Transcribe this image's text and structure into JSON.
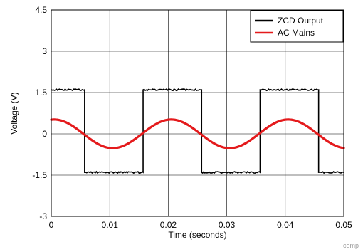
{
  "chart_data": {
    "type": "line",
    "xlabel": "Time (seconds)",
    "ylabel": "Voltage (V)",
    "xlim": [
      0,
      0.05
    ],
    "ylim": [
      -3,
      4.5
    ],
    "xticks": [
      0,
      0.01,
      0.02,
      0.03,
      0.04,
      0.05
    ],
    "yticks": [
      -3,
      -1.5,
      0,
      1.5,
      3,
      4.5
    ],
    "x_tick_labels": [
      "0",
      "0.01",
      "0.02",
      "0.03",
      "0.04",
      "0.05"
    ],
    "y_tick_labels": [
      "-3",
      "-1.5",
      "0",
      "1.5",
      "3",
      "4.5"
    ],
    "grid": true,
    "legend_position": "top-right",
    "series": [
      {
        "name": "ZCD Output",
        "color": "#000000",
        "x": [
          0,
          0.0057,
          0.0057,
          0.0157,
          0.0157,
          0.0257,
          0.0257,
          0.0357,
          0.0357,
          0.0457,
          0.0457,
          0.05
        ],
        "y": [
          1.6,
          1.6,
          -1.4,
          -1.4,
          1.6,
          1.6,
          -1.4,
          -1.4,
          1.6,
          1.6,
          -1.4,
          -1.4
        ]
      },
      {
        "name": "AC Mains",
        "color": "#e41a1c",
        "amplitude": 0.52,
        "frequency_hz": 50,
        "peak_time": 0.0005,
        "x": [
          0,
          0.0025,
          0.005,
          0.0075,
          0.01,
          0.0125,
          0.015,
          0.0175,
          0.02,
          0.0225,
          0.025,
          0.0275,
          0.03,
          0.0325,
          0.035,
          0.0375,
          0.04,
          0.0425,
          0.045,
          0.0475,
          0.05
        ],
        "y": [
          0.52,
          0.25,
          -0.16,
          -0.44,
          -0.5,
          -0.3,
          0.08,
          0.4,
          0.52,
          0.25,
          -0.16,
          -0.44,
          -0.5,
          -0.3,
          0.08,
          0.4,
          0.52,
          0.25,
          -0.16,
          -0.44,
          -0.5
        ]
      }
    ]
  },
  "watermark": "comp"
}
